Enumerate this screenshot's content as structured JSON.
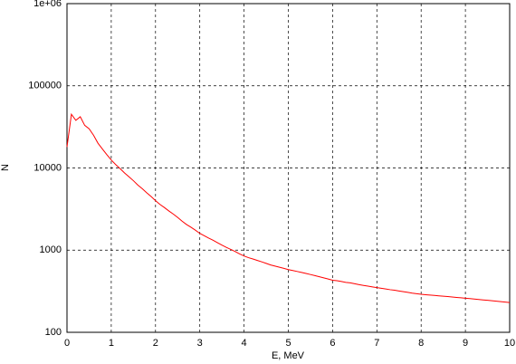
{
  "chart_data": {
    "type": "line",
    "xlabel": "E, MeV",
    "ylabel": "N",
    "log_y": true,
    "grid": true,
    "color": "#ff0000",
    "xlim": [
      0,
      10
    ],
    "xticks": [
      0,
      1,
      2,
      3,
      4,
      5,
      6,
      7,
      8,
      9,
      10
    ],
    "ylim": [
      100,
      1000000
    ],
    "yticks": [
      100,
      1000,
      10000,
      100000,
      {
        "value": 1000000,
        "label": "1e+06"
      }
    ],
    "x": [
      0,
      0.1,
      0.2,
      0.3,
      0.4,
      0.5,
      0.6,
      0.7,
      0.8,
      0.9,
      1.0,
      1.1,
      1.2,
      1.3,
      1.4,
      1.5,
      1.6,
      1.7,
      1.8,
      1.9,
      2.0,
      2.1,
      2.2,
      2.3,
      2.4,
      2.5,
      2.6,
      2.7,
      2.8,
      2.9,
      3.0,
      3.1,
      3.2,
      3.3,
      3.4,
      3.5,
      3.6,
      3.7,
      3.8,
      3.9,
      4.0,
      4.1,
      4.2,
      4.3,
      4.4,
      4.5,
      4.6,
      4.7,
      4.8,
      4.9,
      5.0,
      5.1,
      5.2,
      5.3,
      5.4,
      5.5,
      5.6,
      5.7,
      5.8,
      5.9,
      6.0,
      6.1,
      6.2,
      6.3,
      6.4,
      6.5,
      6.6,
      6.7,
      6.8,
      6.9,
      7.0,
      7.1,
      7.2,
      7.3,
      7.4,
      7.5,
      7.6,
      7.7,
      7.8,
      7.9,
      8.0,
      8.1,
      8.2,
      8.3,
      8.4,
      8.5,
      8.6,
      8.7,
      8.8,
      8.9,
      9.0,
      9.1,
      9.2,
      9.3,
      9.4,
      9.5,
      9.6,
      9.7,
      9.8,
      9.9,
      10.0
    ],
    "values": [
      18000,
      45000,
      38000,
      42000,
      33000,
      30000,
      25000,
      20000,
      17000,
      14500,
      12500,
      11000,
      9800,
      8700,
      7800,
      7000,
      6200,
      5600,
      5000,
      4500,
      4000,
      3600,
      3300,
      3000,
      2750,
      2500,
      2250,
      2050,
      1900,
      1750,
      1600,
      1500,
      1400,
      1320,
      1230,
      1150,
      1080,
      1020,
      960,
      900,
      850,
      810,
      780,
      750,
      720,
      690,
      660,
      640,
      620,
      600,
      580,
      565,
      550,
      535,
      520,
      505,
      490,
      475,
      460,
      445,
      430,
      425,
      415,
      405,
      400,
      390,
      380,
      372,
      365,
      357,
      350,
      343,
      337,
      330,
      325,
      318,
      312,
      306,
      300,
      295,
      290,
      287,
      284,
      281,
      278,
      275,
      272,
      269,
      266,
      263,
      260,
      257,
      254,
      251,
      248,
      245,
      242,
      239,
      236,
      233,
      230
    ]
  }
}
